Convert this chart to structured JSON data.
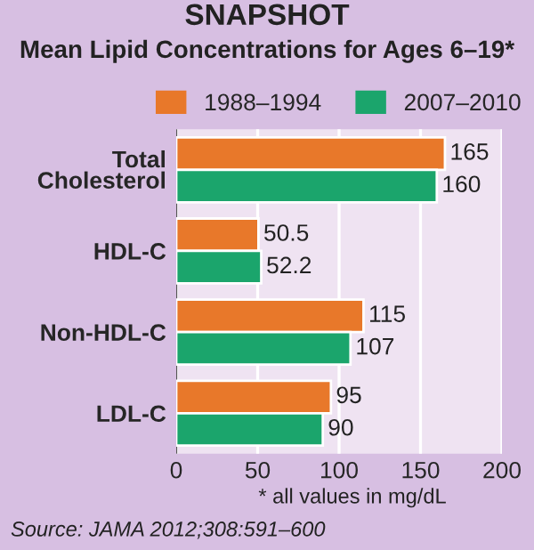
{
  "chart_data": {
    "type": "bar",
    "orientation": "horizontal",
    "title": "SNAPSHOT",
    "subtitle": "Mean Lipid Concentrations for Ages 6–19*",
    "categories": [
      "Total\nCholesterol",
      "HDL-C",
      "Non-HDL-C",
      "LDL-C"
    ],
    "series": [
      {
        "name": "1988–1994",
        "color": "#e8782a",
        "values": [
          165,
          50.5,
          115,
          95
        ]
      },
      {
        "name": "2007–2010",
        "color": "#1ba56c",
        "values": [
          160,
          52.2,
          107,
          90
        ]
      }
    ],
    "xlim": [
      0,
      200
    ],
    "xticks": [
      0,
      50,
      100,
      150,
      200
    ],
    "grid": "x",
    "legend": "top",
    "data_labels": true,
    "annotations": [
      "* all values in mg/dL",
      "Source: JAMA 2012;308:591–600"
    ]
  }
}
